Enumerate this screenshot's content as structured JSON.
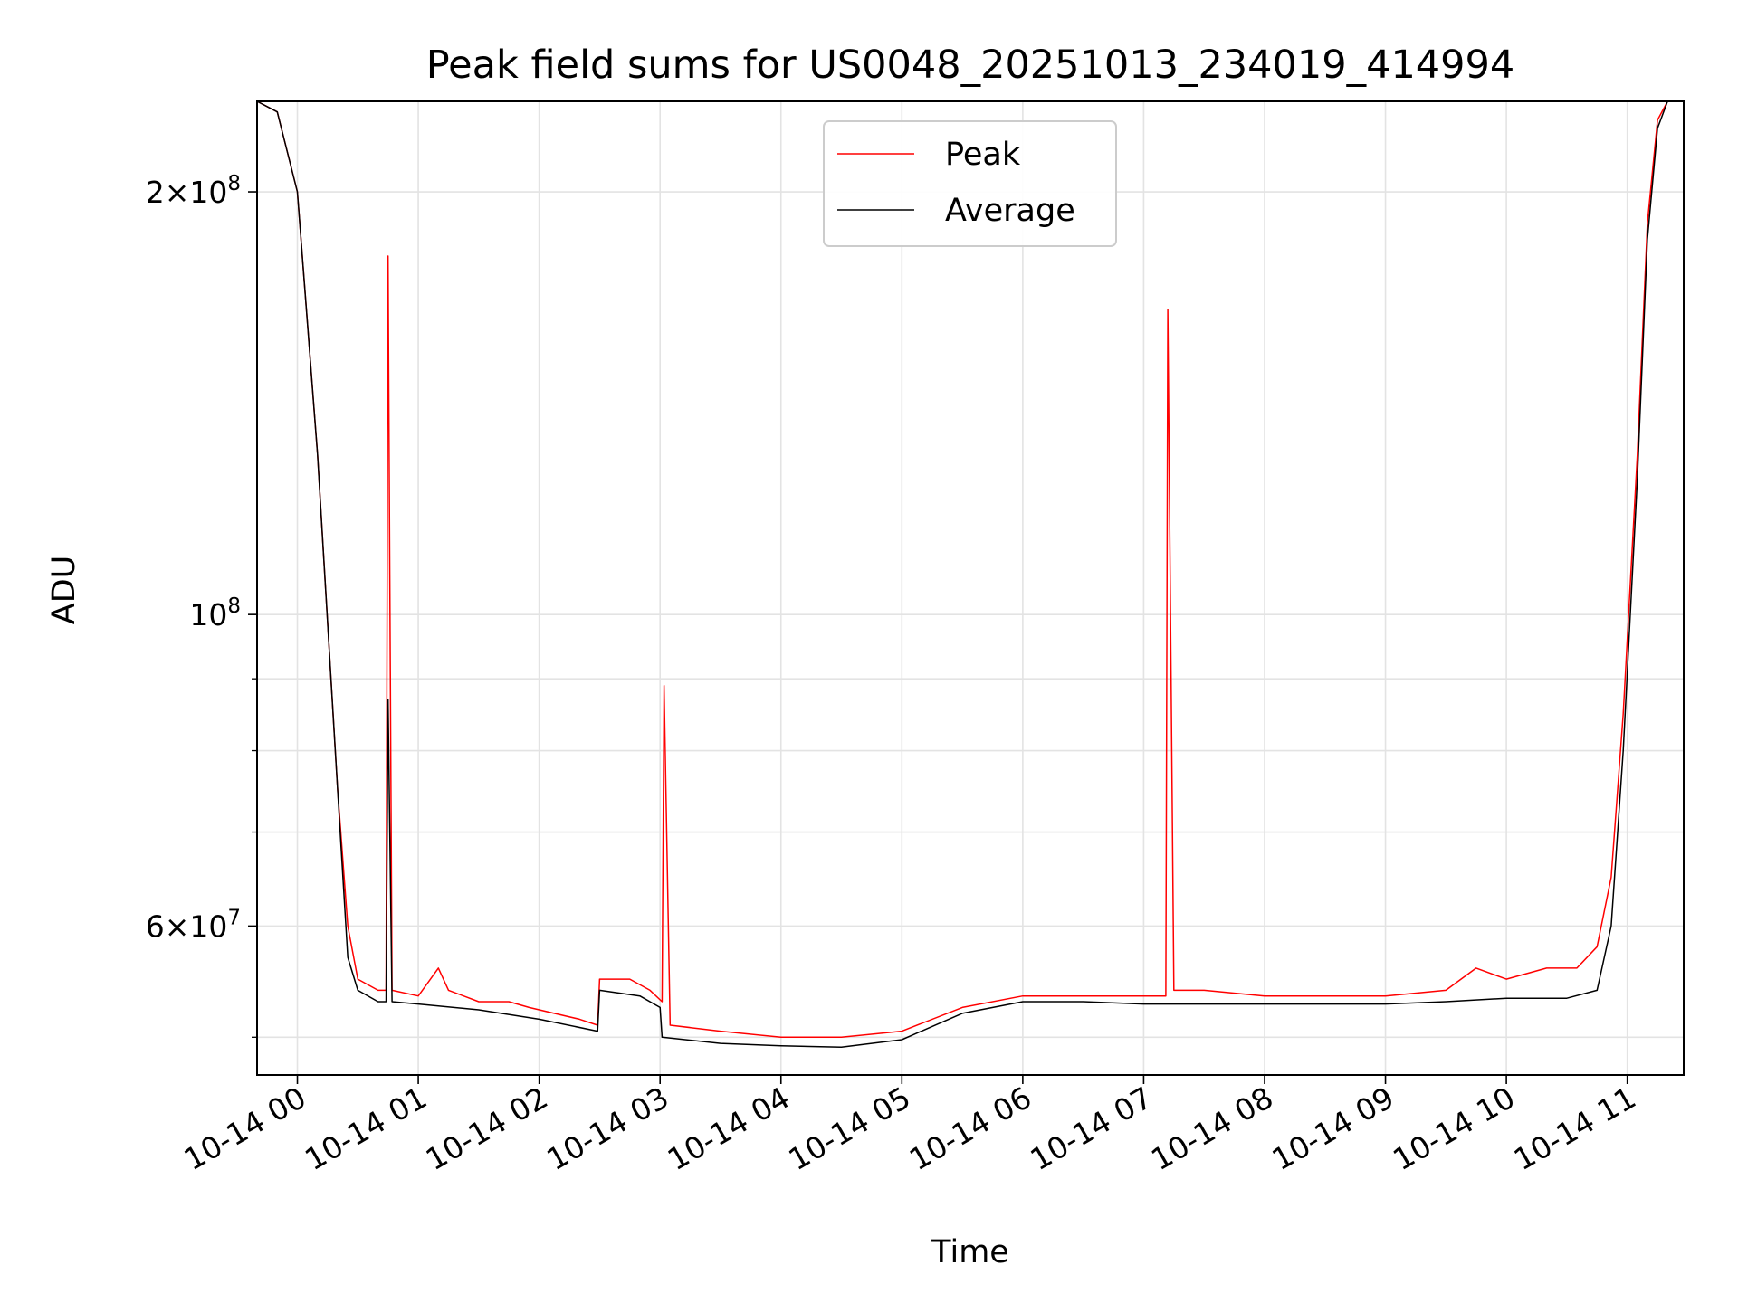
{
  "chart_data": {
    "type": "line",
    "title": "Peak field sums for US0048_20251013_234019_414994",
    "xlabel": "Time",
    "ylabel": "ADU",
    "y_scale": "log",
    "ylim": [
      47000000,
      232000000
    ],
    "xlim": [
      "2025-10-13 23:40",
      "2025-10-14 11:28"
    ],
    "grid": true,
    "legend_position": "upper center",
    "x_tick_labels": [
      "10-14 00",
      "10-14 01",
      "10-14 02",
      "10-14 03",
      "10-14 04",
      "10-14 05",
      "10-14 06",
      "10-14 07",
      "10-14 08",
      "10-14 09",
      "10-14 10",
      "10-14 11"
    ],
    "y_tick_labels": [
      {
        "value": 200000000,
        "mantissa": "2",
        "exponent": "8"
      },
      {
        "value": 100000000,
        "mantissa": "",
        "exponent": "8"
      },
      {
        "value": 60000000,
        "mantissa": "6",
        "exponent": "7"
      }
    ],
    "y_minor_ticks": [
      50000000,
      70000000,
      80000000,
      90000000
    ],
    "series": [
      {
        "name": "Peak",
        "color": "#ff0000",
        "x": [
          "2025-10-13 23:40",
          "2025-10-13 23:50",
          "2025-10-14 00:00",
          "2025-10-14 00:10",
          "2025-10-14 00:20",
          "2025-10-14 00:25",
          "2025-10-14 00:30",
          "2025-10-14 00:40",
          "2025-10-14 00:44",
          "2025-10-14 00:45",
          "2025-10-14 00:47",
          "2025-10-14 01:00",
          "2025-10-14 01:10",
          "2025-10-14 01:15",
          "2025-10-14 01:30",
          "2025-10-14 01:45",
          "2025-10-14 01:55",
          "2025-10-14 02:20",
          "2025-10-14 02:29",
          "2025-10-14 02:30",
          "2025-10-14 02:45",
          "2025-10-14 02:55",
          "2025-10-14 03:01",
          "2025-10-14 03:02",
          "2025-10-14 03:05",
          "2025-10-14 03:30",
          "2025-10-14 04:00",
          "2025-10-14 04:30",
          "2025-10-14 05:00",
          "2025-10-14 05:30",
          "2025-10-14 06:00",
          "2025-10-14 06:30",
          "2025-10-14 07:00",
          "2025-10-14 07:11",
          "2025-10-14 07:12",
          "2025-10-14 07:15",
          "2025-10-14 07:30",
          "2025-10-14 08:00",
          "2025-10-14 08:30",
          "2025-10-14 09:00",
          "2025-10-14 09:30",
          "2025-10-14 09:45",
          "2025-10-14 10:00",
          "2025-10-14 10:20",
          "2025-10-14 10:35",
          "2025-10-14 10:45",
          "2025-10-14 10:52",
          "2025-10-14 10:58",
          "2025-10-14 11:05",
          "2025-10-14 11:10",
          "2025-10-14 11:15",
          "2025-10-14 11:20"
        ],
        "y": [
          232000000,
          228000000,
          200000000,
          130000000,
          75000000,
          60000000,
          55000000,
          54000000,
          54000000,
          180000000,
          54000000,
          53500000,
          56000000,
          54000000,
          53000000,
          53000000,
          52500000,
          51500000,
          51000000,
          55000000,
          55000000,
          54000000,
          53000000,
          89000000,
          51000000,
          50500000,
          50000000,
          50000000,
          50500000,
          52500000,
          53500000,
          53500000,
          53500000,
          53500000,
          165000000,
          54000000,
          54000000,
          53500000,
          53500000,
          53500000,
          54000000,
          56000000,
          55000000,
          56000000,
          56000000,
          58000000,
          65000000,
          85000000,
          130000000,
          190000000,
          225000000,
          232000000
        ]
      },
      {
        "name": "Average",
        "color": "#000000",
        "x": [
          "2025-10-13 23:40",
          "2025-10-13 23:50",
          "2025-10-14 00:00",
          "2025-10-14 00:10",
          "2025-10-14 00:20",
          "2025-10-14 00:25",
          "2025-10-14 00:30",
          "2025-10-14 00:40",
          "2025-10-14 00:44",
          "2025-10-14 00:45",
          "2025-10-14 00:47",
          "2025-10-14 01:00",
          "2025-10-14 01:30",
          "2025-10-14 02:00",
          "2025-10-14 02:29",
          "2025-10-14 02:30",
          "2025-10-14 02:50",
          "2025-10-14 03:00",
          "2025-10-14 03:01",
          "2025-10-14 03:30",
          "2025-10-14 04:00",
          "2025-10-14 04:30",
          "2025-10-14 05:00",
          "2025-10-14 05:30",
          "2025-10-14 06:00",
          "2025-10-14 06:30",
          "2025-10-14 07:00",
          "2025-10-14 07:30",
          "2025-10-14 08:00",
          "2025-10-14 08:30",
          "2025-10-14 09:00",
          "2025-10-14 09:30",
          "2025-10-14 10:00",
          "2025-10-14 10:30",
          "2025-10-14 10:45",
          "2025-10-14 10:52",
          "2025-10-14 10:58",
          "2025-10-14 11:05",
          "2025-10-14 11:10",
          "2025-10-14 11:15",
          "2025-10-14 11:20"
        ],
        "y": [
          232000000,
          228000000,
          200000000,
          130000000,
          75000000,
          57000000,
          54000000,
          53000000,
          53000000,
          87000000,
          53000000,
          52800000,
          52300000,
          51500000,
          50500000,
          54000000,
          53500000,
          52500000,
          50000000,
          49500000,
          49300000,
          49200000,
          49800000,
          52000000,
          53000000,
          53000000,
          52800000,
          52800000,
          52800000,
          52800000,
          52800000,
          53000000,
          53300000,
          53300000,
          54000000,
          60000000,
          80000000,
          125000000,
          185000000,
          222000000,
          232000000
        ]
      }
    ]
  }
}
